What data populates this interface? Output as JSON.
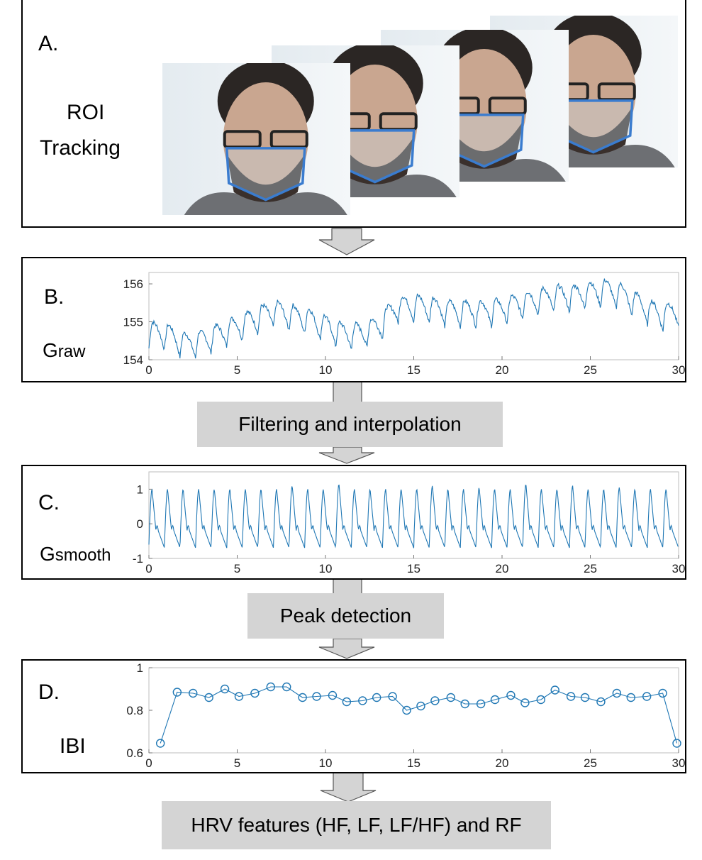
{
  "panel_a": {
    "label": "A.",
    "text_line1": "ROI",
    "text_line2": "Tracking",
    "frame_icon": "face-photo-with-roi-outline",
    "roi_color": "#3a7ccf"
  },
  "panel_b": {
    "label": "B.",
    "signal_main": "G",
    "signal_sub": "raw"
  },
  "stage_1": "Filtering and interpolation",
  "panel_c": {
    "label": "C.",
    "signal_main": "G",
    "signal_sub": "smooth"
  },
  "stage_2": "Peak detection",
  "panel_d": {
    "label": "D.",
    "signal": "IBI"
  },
  "stage_3": "HRV features (HF, LF, LF/HF) and RF",
  "colors": {
    "line": "#1f77b4",
    "arrow_fill": "#d4d4d4",
    "stage_bg": "#d4d4d4"
  },
  "chart_data": [
    {
      "type": "line",
      "x_ticks": [
        "0",
        "5",
        "10",
        "15",
        "20",
        "25",
        "30"
      ],
      "y_ticks": [
        "154",
        "155",
        "156"
      ],
      "xlim": [
        0,
        30
      ],
      "ylim": [
        154,
        156.3
      ],
      "mean_trend": [
        [
          0,
          154.65
        ],
        [
          1,
          154.6
        ],
        [
          2,
          154.35
        ],
        [
          3,
          154.4
        ],
        [
          4,
          154.6
        ],
        [
          5,
          154.8
        ],
        [
          6,
          155.0
        ],
        [
          7,
          155.2
        ],
        [
          8,
          155.1
        ],
        [
          9,
          155.0
        ],
        [
          10,
          154.8
        ],
        [
          11,
          154.6
        ],
        [
          12,
          154.6
        ],
        [
          13,
          154.8
        ],
        [
          14,
          155.3
        ],
        [
          15,
          155.35
        ],
        [
          16,
          155.3
        ],
        [
          17,
          155.2
        ],
        [
          18,
          155.2
        ],
        [
          19,
          155.2
        ],
        [
          20,
          155.25
        ],
        [
          21,
          155.4
        ],
        [
          22,
          155.5
        ],
        [
          23,
          155.6
        ],
        [
          24,
          155.6
        ],
        [
          25,
          155.7
        ],
        [
          26,
          155.75
        ],
        [
          27,
          155.6
        ],
        [
          28,
          155.3
        ],
        [
          29,
          155.1
        ],
        [
          30,
          155.2
        ]
      ],
      "beat_amplitude": 0.7,
      "beats_over_30s": 34
    },
    {
      "type": "line",
      "x_ticks": [
        "0",
        "5",
        "10",
        "15",
        "20",
        "25",
        "30"
      ],
      "y_ticks": [
        "-1",
        "0",
        "1"
      ],
      "xlim": [
        0,
        30
      ],
      "ylim": [
        -1,
        1.5
      ],
      "peak_amplitudes": [
        1.0,
        1.0,
        1.0,
        1.0,
        1.0,
        1.0,
        1.0,
        1.0,
        1.0,
        1.1,
        1.0,
        1.0,
        1.15,
        1.0,
        1.0,
        1.0,
        1.0,
        1.0,
        1.1,
        1.0,
        1.0,
        1.05,
        1.0,
        1.0,
        1.15,
        1.0,
        1.0,
        1.1,
        1.0,
        1.0,
        1.05,
        1.0,
        1.0,
        1.0
      ],
      "trough_min": -0.75
    },
    {
      "type": "line",
      "marker": "circle",
      "x_ticks": [
        "0",
        "5",
        "10",
        "15",
        "20",
        "25",
        "30"
      ],
      "y_ticks": [
        "0.6",
        "0.8",
        "1"
      ],
      "xlim": [
        0,
        30
      ],
      "ylim": [
        0.6,
        1
      ],
      "x": [
        0.65,
        1.6,
        2.5,
        3.4,
        4.3,
        5.1,
        6.0,
        6.9,
        7.8,
        8.7,
        9.5,
        10.4,
        11.2,
        12.1,
        12.9,
        13.8,
        14.6,
        15.4,
        16.2,
        17.1,
        17.9,
        18.8,
        19.6,
        20.5,
        21.3,
        22.2,
        23.0,
        23.9,
        24.7,
        25.6,
        26.5,
        27.3,
        28.2,
        29.1,
        29.9
      ],
      "y": [
        0.645,
        0.885,
        0.88,
        0.86,
        0.9,
        0.865,
        0.88,
        0.91,
        0.91,
        0.86,
        0.865,
        0.87,
        0.84,
        0.845,
        0.86,
        0.865,
        0.8,
        0.82,
        0.845,
        0.86,
        0.83,
        0.83,
        0.85,
        0.87,
        0.835,
        0.85,
        0.895,
        0.865,
        0.86,
        0.84,
        0.88,
        0.86,
        0.865,
        0.88,
        0.645
      ]
    }
  ]
}
